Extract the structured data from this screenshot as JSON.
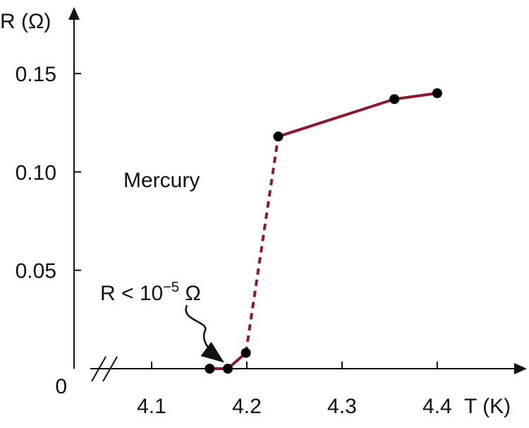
{
  "chart_data": {
    "type": "line",
    "title": "Mercury",
    "x_label": "T (K)",
    "y_label": "R (Ω)",
    "annotation": {
      "text": "R < 10",
      "superscript": "−5",
      "suffix": " Ω"
    },
    "x": [
      4.161,
      4.18,
      4.199,
      4.233,
      4.355,
      4.4
    ],
    "series": [
      {
        "color": "#8b1a2e",
        "values": [
          0,
          0,
          0.008,
          0.118,
          0.137,
          0.14
        ],
        "segment_styles": [
          "solid",
          "solid",
          "dashed",
          "solid",
          "solid"
        ]
      }
    ],
    "xlim": [
      4.0185,
      4.489
    ],
    "ylim": [
      0,
      0.182
    ],
    "xticks": [
      4.1,
      4.2,
      4.3,
      4.4
    ],
    "yticks": [
      0,
      0.05,
      {
        "value": 0.1,
        "label": "0.10"
      },
      0.15
    ],
    "grid": false
  }
}
